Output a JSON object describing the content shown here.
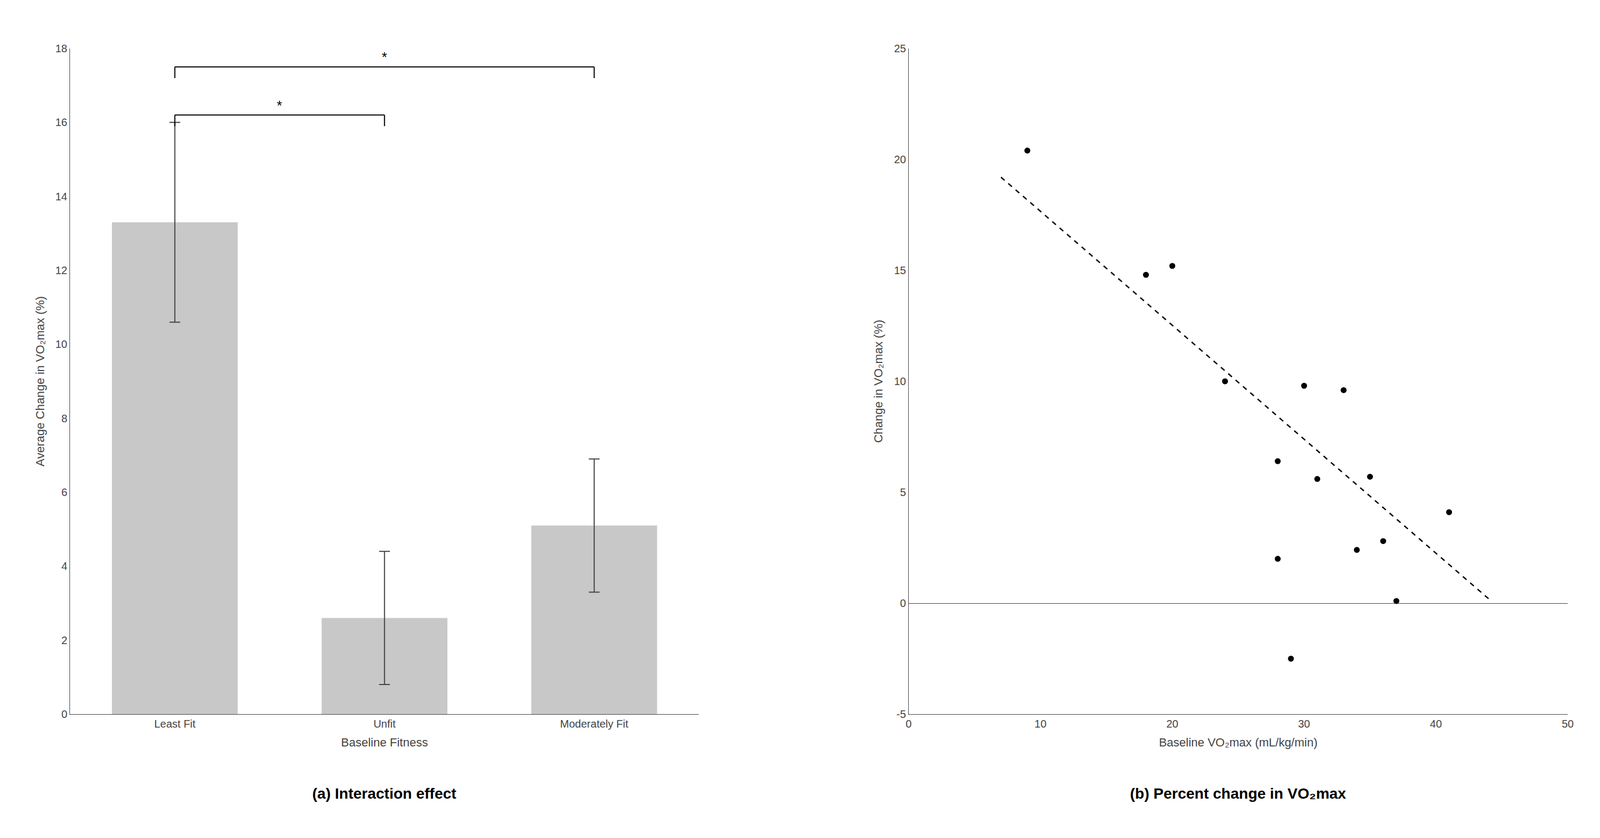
{
  "chart_data": [
    {
      "type": "bar",
      "title": "(a) Interaction effect",
      "xlabel": "Baseline Fitness",
      "ylabel": "Average Change in VO₂max (%)",
      "categories": [
        "Least Fit",
        "Unfit",
        "Moderately Fit"
      ],
      "values": [
        13.3,
        2.6,
        5.1
      ],
      "errors": [
        2.7,
        1.8,
        1.8
      ],
      "color": "#c8c8c8",
      "ylim": [
        0,
        18
      ],
      "yticks": [
        0,
        2,
        4,
        6,
        8,
        10,
        12,
        14,
        16,
        18
      ],
      "grid": false,
      "annotations": [
        {
          "text": "*",
          "from": "Least Fit",
          "to": "Unfit",
          "y": 16.2
        },
        {
          "text": "*",
          "from": "Least Fit",
          "to": "Moderately Fit",
          "y": 17.5
        }
      ]
    },
    {
      "type": "scatter",
      "title": "(b) Percent change in VO₂max",
      "xlabel": "Baseline VO₂max (mL/kg/min)",
      "ylabel": "Change in VO₂max (%)",
      "xlim": [
        0,
        50
      ],
      "xticks": [
        0,
        10,
        20,
        30,
        40,
        50
      ],
      "ylim": [
        -5,
        25
      ],
      "yticks": [
        -5,
        0,
        5,
        10,
        15,
        20,
        25
      ],
      "grid": false,
      "series": [
        {
          "type": "scatter",
          "x": [
            9,
            18,
            20,
            24,
            28,
            28,
            29,
            30,
            31,
            33,
            34,
            35,
            36,
            37,
            41
          ],
          "values": [
            20.4,
            14.8,
            15.2,
            10.0,
            2.0,
            6.4,
            -2.5,
            9.8,
            5.6,
            9.6,
            2.4,
            5.7,
            2.8,
            0.1,
            4.1
          ],
          "color": "#000000"
        },
        {
          "type": "line",
          "x": [
            7,
            44
          ],
          "values": [
            19.2,
            0.2
          ],
          "color": "#000000",
          "line_style": "dashed"
        }
      ]
    }
  ]
}
